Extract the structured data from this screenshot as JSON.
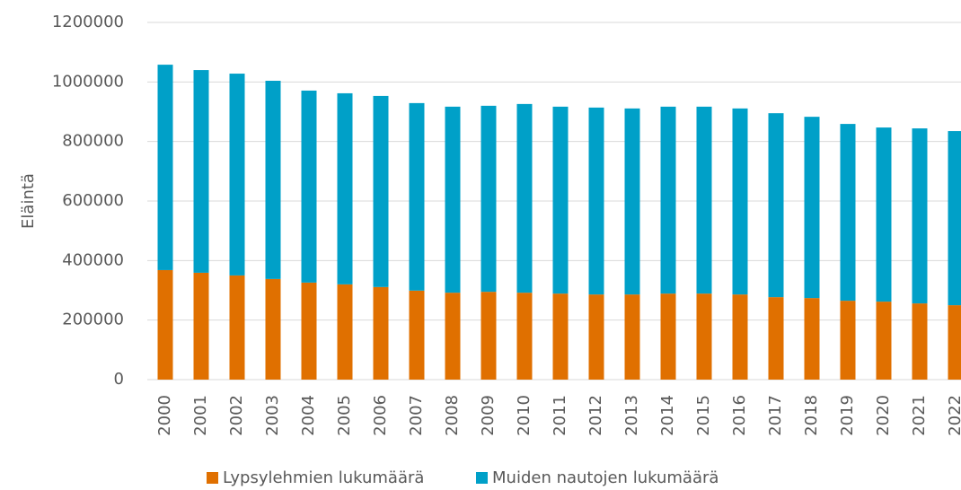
{
  "chart_data": {
    "type": "stacked-bar",
    "ylabel": "Eläintä",
    "categories": [
      "2000",
      "2001",
      "2002",
      "2003",
      "2004",
      "2005",
      "2006",
      "2007",
      "2008",
      "2009",
      "2010",
      "2011",
      "2012",
      "2013",
      "2014",
      "2015",
      "2016",
      "2017",
      "2018",
      "2019",
      "2020",
      "2021",
      "2022"
    ],
    "series": [
      {
        "name": "Lypsylehmien lukumäärä",
        "color": "#e07000",
        "values": [
          368000,
          359000,
          350000,
          338000,
          326000,
          320000,
          311000,
          299000,
          292000,
          295000,
          292000,
          289000,
          286000,
          286000,
          289000,
          289000,
          286000,
          277000,
          274000,
          265000,
          262000,
          256000,
          250000
        ]
      },
      {
        "name": "Muiden nautojen lukumäärä",
        "color": "#00a0c8",
        "values": [
          690000,
          681000,
          678000,
          666000,
          645000,
          642000,
          642000,
          630000,
          625000,
          625000,
          634000,
          628000,
          628000,
          625000,
          628000,
          628000,
          625000,
          618000,
          609000,
          594000,
          585000,
          588000,
          585000
        ]
      }
    ],
    "ylim": [
      0,
      1200000
    ],
    "yticks": [
      0,
      200000,
      400000,
      600000,
      800000,
      1000000,
      1200000
    ],
    "grid": true,
    "legend": "bottom"
  }
}
